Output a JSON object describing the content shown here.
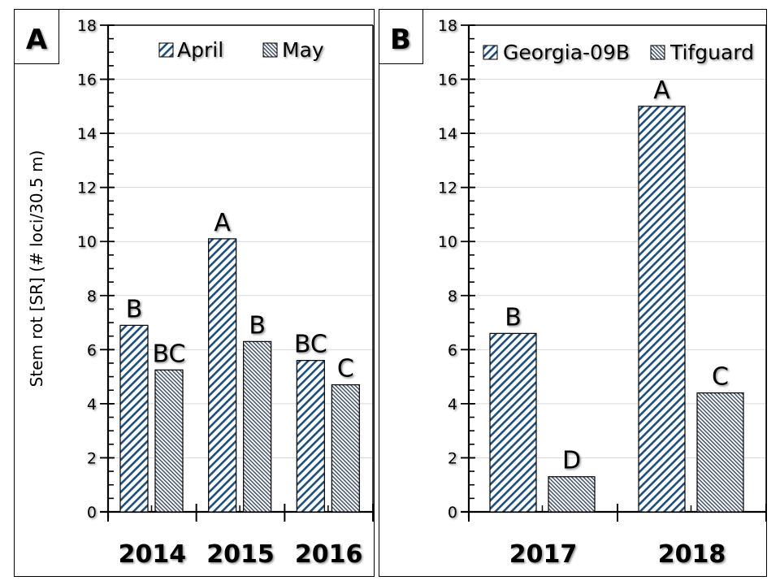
{
  "colors": {
    "april_stripe": "#1f4e79",
    "may_stripe": "#44546a",
    "gridline": "#d9d9d9",
    "axis": "#000000"
  },
  "chart_data": [
    {
      "panel_label": "A",
      "type": "bar",
      "ylabel": "Stem rot [SR] (# loci/30.5 m)",
      "ylim": [
        0,
        18
      ],
      "yticks": [
        "0",
        "2",
        "4",
        "6",
        "8",
        "10",
        "12",
        "14",
        "16",
        "18"
      ],
      "ytick_values": [
        0,
        2,
        4,
        6,
        8,
        10,
        12,
        14,
        16,
        18
      ],
      "minor_step": 0.5,
      "grid": true,
      "legend_position": "top",
      "categories": [
        "2014",
        "2015",
        "2016"
      ],
      "series": [
        {
          "name": "April",
          "pattern": "wide-stripe",
          "values": [
            6.9,
            10.1,
            5.6
          ],
          "letters": [
            "B",
            "A",
            "BC"
          ]
        },
        {
          "name": "May",
          "pattern": "fine-stripe",
          "values": [
            5.25,
            6.3,
            4.7
          ],
          "letters": [
            "BC",
            "B",
            "C"
          ]
        }
      ]
    },
    {
      "panel_label": "B",
      "type": "bar",
      "ylabel": "",
      "ylim": [
        0,
        18
      ],
      "yticks": [
        "0",
        "2",
        "4",
        "6",
        "8",
        "10",
        "12",
        "14",
        "16",
        "18"
      ],
      "ytick_values": [
        0,
        2,
        4,
        6,
        8,
        10,
        12,
        14,
        16,
        18
      ],
      "minor_step": 0.5,
      "grid": true,
      "legend_position": "top",
      "categories": [
        "2017",
        "2018"
      ],
      "series": [
        {
          "name": "Georgia-09B",
          "pattern": "wide-stripe",
          "values": [
            6.6,
            15.0
          ],
          "letters": [
            "B",
            "A"
          ]
        },
        {
          "name": "Tifguard",
          "pattern": "fine-stripe",
          "values": [
            1.3,
            4.4
          ],
          "letters": [
            "D",
            "C"
          ]
        }
      ]
    }
  ]
}
